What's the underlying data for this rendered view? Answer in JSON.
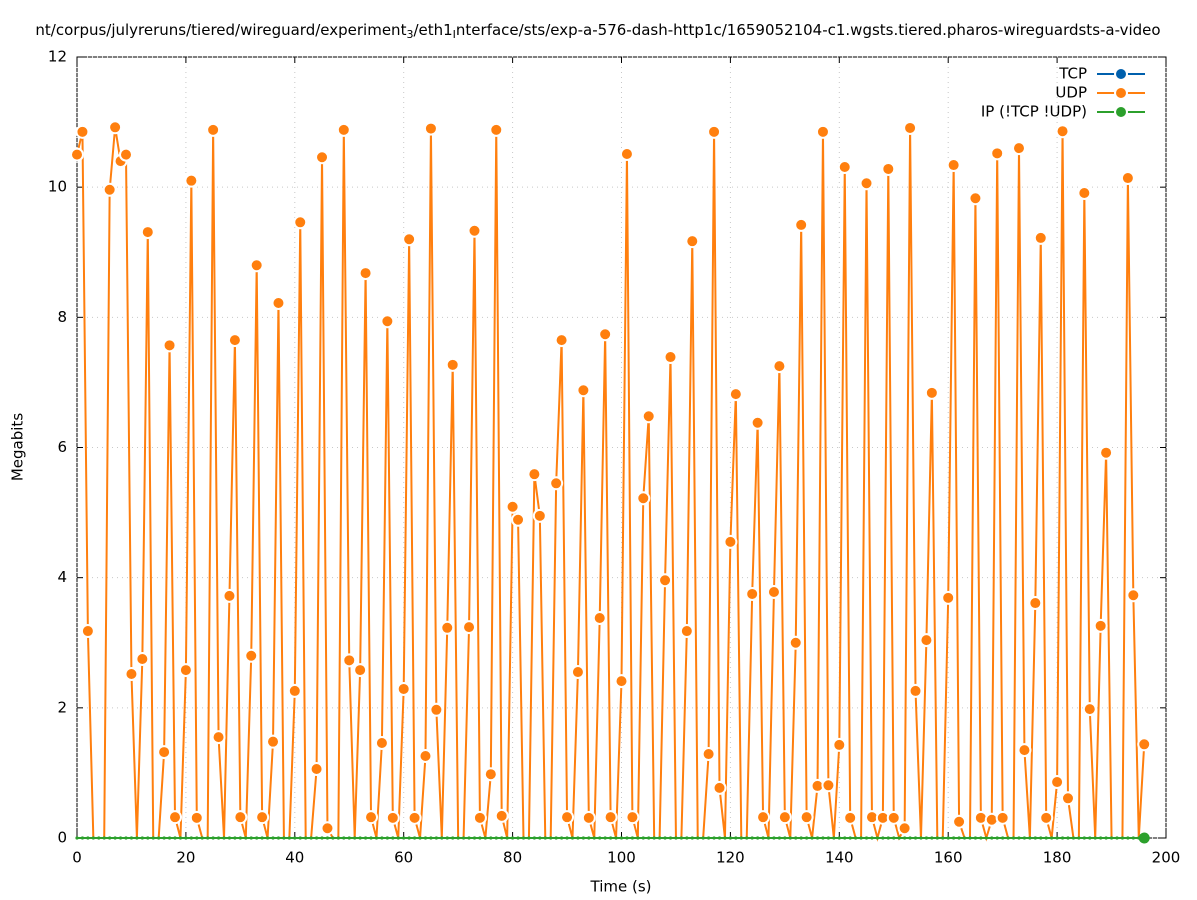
{
  "chart_data": {
    "type": "line",
    "title_parts": [
      "nt/corpus/julyreruns/tiered/wireguard/experiment",
      "3",
      "/eth1",
      "I",
      "nterface/sts/exp-a-576-dash-http1c/1659052104-c1.wgsts.tiered.pharos-wireguardsts-a-video"
    ],
    "x_label": "Time (s)",
    "y_label": "Megabits",
    "xlim": [
      0,
      200
    ],
    "xticks": [
      0,
      20,
      40,
      60,
      80,
      100,
      120,
      140,
      160,
      180,
      200
    ],
    "ylim": [
      0,
      12
    ],
    "yticks": [
      0,
      2,
      4,
      6,
      8,
      10,
      12
    ],
    "grid": true,
    "legend": "top-right",
    "x": [
      0,
      1,
      2,
      3,
      4,
      5,
      6,
      7,
      8,
      9,
      10,
      11,
      12,
      13,
      14,
      15,
      16,
      17,
      18,
      19,
      20,
      21,
      22,
      23,
      24,
      25,
      26,
      27,
      28,
      29,
      30,
      31,
      32,
      33,
      34,
      35,
      36,
      37,
      38,
      39,
      40,
      41,
      42,
      43,
      44,
      45,
      46,
      47,
      48,
      49,
      50,
      51,
      52,
      53,
      54,
      55,
      56,
      57,
      58,
      59,
      60,
      61,
      62,
      63,
      64,
      65,
      66,
      67,
      68,
      69,
      70,
      71,
      72,
      73,
      74,
      75,
      76,
      77,
      78,
      79,
      80,
      81,
      82,
      83,
      84,
      85,
      86,
      87,
      88,
      89,
      90,
      91,
      92,
      93,
      94,
      95,
      96,
      97,
      98,
      99,
      100,
      101,
      102,
      103,
      104,
      105,
      106,
      107,
      108,
      109,
      110,
      111,
      112,
      113,
      114,
      115,
      116,
      117,
      118,
      119,
      120,
      121,
      122,
      123,
      124,
      125,
      126,
      127,
      128,
      129,
      130,
      131,
      132,
      133,
      134,
      135,
      136,
      137,
      138,
      139,
      140,
      141,
      142,
      143,
      144,
      145,
      146,
      147,
      148,
      149,
      150,
      151,
      152,
      153,
      154,
      155,
      156,
      157,
      158,
      159,
      160,
      161,
      162,
      163,
      164,
      165,
      166,
      167,
      168,
      169,
      170,
      171,
      172,
      173,
      174,
      175,
      176,
      177,
      178,
      179,
      180,
      181,
      182,
      183,
      184,
      185,
      186,
      187,
      188,
      189,
      190,
      191,
      192,
      193,
      194,
      195,
      196
    ],
    "series": [
      {
        "name": "TCP",
        "color": "#0060ad",
        "values": [
          0,
          0,
          0,
          0,
          0,
          0,
          0,
          0,
          0,
          0,
          0,
          0,
          0,
          0,
          0,
          0,
          0,
          0,
          0,
          0,
          0,
          0,
          0,
          0,
          0,
          0,
          0,
          0,
          0,
          0,
          0,
          0,
          0,
          0,
          0,
          0,
          0,
          0,
          0,
          0,
          0,
          0,
          0,
          0,
          0,
          0,
          0,
          0,
          0,
          0,
          0,
          0,
          0,
          0,
          0,
          0,
          0,
          0,
          0,
          0,
          0,
          0,
          0,
          0,
          0,
          0,
          0,
          0,
          0,
          0,
          0,
          0,
          0,
          0,
          0,
          0,
          0,
          0,
          0,
          0,
          0,
          0,
          0,
          0,
          0,
          0,
          0,
          0,
          0,
          0,
          0,
          0,
          0,
          0,
          0,
          0,
          0,
          0,
          0,
          0,
          0,
          0,
          0,
          0,
          0,
          0,
          0,
          0,
          0,
          0,
          0,
          0,
          0,
          0,
          0,
          0,
          0,
          0,
          0,
          0,
          0,
          0,
          0,
          0,
          0,
          0,
          0,
          0,
          0,
          0,
          0,
          0,
          0,
          0,
          0,
          0,
          0,
          0,
          0,
          0,
          0,
          0,
          0,
          0,
          0,
          0,
          0,
          0,
          0,
          0,
          0,
          0,
          0,
          0,
          0,
          0,
          0,
          0,
          0,
          0,
          0,
          0,
          0,
          0,
          0,
          0,
          0,
          0,
          0,
          0,
          0,
          0,
          0,
          0,
          0,
          0,
          0,
          0,
          0,
          0,
          0,
          0,
          0,
          0,
          0,
          0,
          0,
          0,
          0,
          0,
          0,
          0,
          0,
          0,
          0,
          0,
          0
        ]
      },
      {
        "name": "UDP",
        "color": "#ff7f0e",
        "values": [
          10.5,
          10.85,
          3.18,
          0,
          0,
          0,
          9.96,
          10.92,
          10.4,
          10.5,
          2.52,
          0,
          2.75,
          9.31,
          0,
          0,
          1.32,
          7.57,
          0.32,
          0,
          2.58,
          10.1,
          0.31,
          0,
          0,
          10.88,
          1.55,
          0,
          3.72,
          7.65,
          0.32,
          0,
          2.8,
          8.8,
          0.32,
          0,
          1.48,
          8.22,
          0,
          0,
          2.26,
          9.46,
          0,
          0,
          1.06,
          10.46,
          0.15,
          0,
          0,
          10.88,
          2.73,
          0,
          2.58,
          8.68,
          0.32,
          0,
          1.46,
          7.94,
          0.31,
          0,
          2.29,
          9.2,
          0.31,
          0,
          1.26,
          10.9,
          1.97,
          0,
          3.23,
          7.27,
          0,
          0,
          3.24,
          9.33,
          0.31,
          0,
          0.98,
          10.88,
          0.34,
          0,
          5.09,
          4.89,
          0,
          0,
          5.59,
          4.95,
          0,
          0,
          5.45,
          7.65,
          0.32,
          0,
          2.55,
          6.88,
          0.31,
          0,
          3.38,
          7.74,
          0.32,
          0,
          2.41,
          10.51,
          0.32,
          0,
          5.22,
          6.48,
          0,
          0,
          3.96,
          7.39,
          0,
          0,
          3.18,
          9.17,
          0,
          0,
          1.29,
          10.85,
          0.77,
          0,
          4.55,
          6.82,
          0,
          0,
          3.75,
          6.38,
          0.32,
          0,
          3.78,
          7.25,
          0.32,
          0,
          3.0,
          9.42,
          0.32,
          0,
          0.8,
          10.85,
          0.81,
          0,
          1.43,
          10.31,
          0.31,
          0,
          0,
          10.06,
          0.32,
          0,
          0.31,
          10.28,
          0.31,
          0,
          0.15,
          10.91,
          2.26,
          0,
          3.04,
          6.84,
          0,
          0,
          3.69,
          10.34,
          0.25,
          0,
          0,
          9.83,
          0.31,
          0,
          0.28,
          10.52,
          0.31,
          0,
          0,
          10.6,
          1.35,
          0,
          3.61,
          9.22,
          0.31,
          0,
          0.86,
          10.86,
          0.61,
          0,
          0,
          9.91,
          1.98,
          0,
          3.26,
          5.92,
          0,
          0,
          0,
          10.14,
          3.73,
          0,
          1.44
        ]
      },
      {
        "name": "IP (!TCP  !UDP)",
        "color": "#2ca02c",
        "values": [
          0,
          0,
          0,
          0,
          0,
          0,
          0,
          0,
          0,
          0,
          0,
          0,
          0,
          0,
          0,
          0,
          0,
          0,
          0,
          0,
          0,
          0,
          0,
          0,
          0,
          0,
          0,
          0,
          0,
          0,
          0,
          0,
          0,
          0,
          0,
          0,
          0,
          0,
          0,
          0,
          0,
          0,
          0,
          0,
          0,
          0,
          0,
          0,
          0,
          0,
          0,
          0,
          0,
          0,
          0,
          0,
          0,
          0,
          0,
          0,
          0,
          0,
          0,
          0,
          0,
          0,
          0,
          0,
          0,
          0,
          0,
          0,
          0,
          0,
          0,
          0,
          0,
          0,
          0,
          0,
          0,
          0,
          0,
          0,
          0,
          0,
          0,
          0,
          0,
          0,
          0,
          0,
          0,
          0,
          0,
          0,
          0,
          0,
          0,
          0,
          0,
          0,
          0,
          0,
          0,
          0,
          0,
          0,
          0,
          0,
          0,
          0,
          0,
          0,
          0,
          0,
          0,
          0,
          0,
          0,
          0,
          0,
          0,
          0,
          0,
          0,
          0,
          0,
          0,
          0,
          0,
          0,
          0,
          0,
          0,
          0,
          0,
          0,
          0,
          0,
          0,
          0,
          0,
          0,
          0,
          0,
          0,
          0,
          0,
          0,
          0,
          0,
          0,
          0,
          0,
          0,
          0,
          0,
          0,
          0,
          0,
          0,
          0,
          0,
          0,
          0,
          0,
          0,
          0,
          0,
          0,
          0,
          0,
          0,
          0,
          0,
          0,
          0,
          0,
          0,
          0,
          0,
          0,
          0,
          0,
          0,
          0,
          0,
          0,
          0,
          0,
          0,
          0,
          0,
          0,
          0,
          0
        ]
      }
    ]
  }
}
